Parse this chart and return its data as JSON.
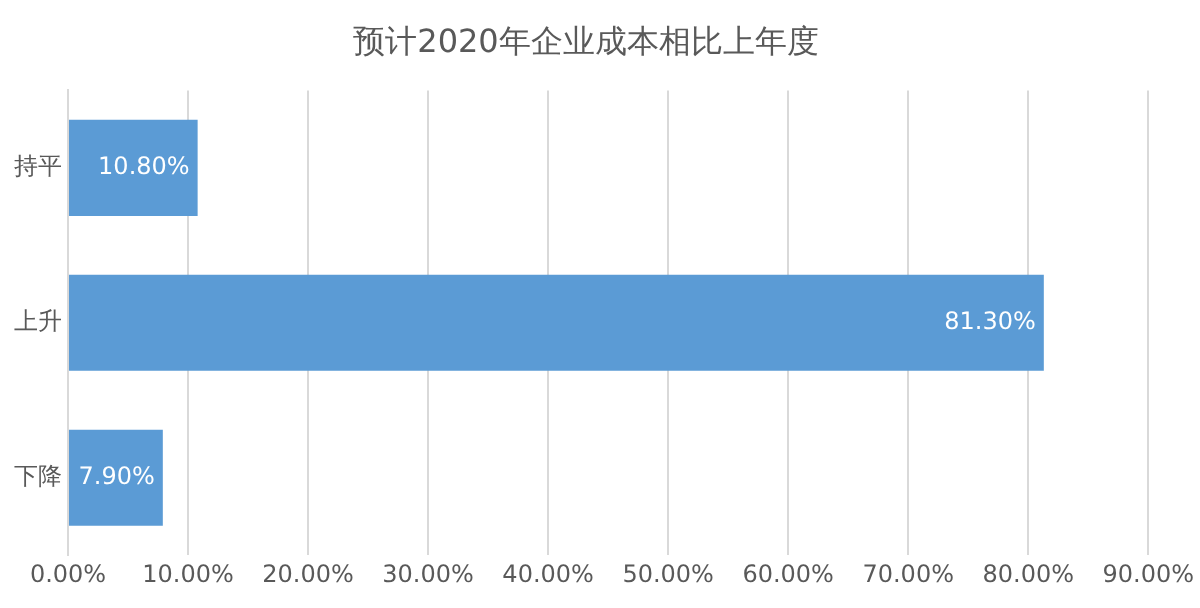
{
  "chart_data": {
    "type": "bar",
    "orientation": "horizontal",
    "title": "预计2020年企业成本相比上年度",
    "categories": [
      "持平",
      "上升",
      "下降"
    ],
    "values": [
      10.8,
      81.3,
      7.9
    ],
    "value_labels": [
      "10.80%",
      "81.30%",
      "7.90%"
    ],
    "color": "#5b9bd5",
    "xlim": [
      0,
      90
    ],
    "xticks": [
      {
        "value": 0,
        "label": "0.00%"
      },
      {
        "value": 10,
        "label": "10.00%"
      },
      {
        "value": 20,
        "label": "20.00%"
      },
      {
        "value": 30,
        "label": "30.00%"
      },
      {
        "value": 40,
        "label": "40.00%"
      },
      {
        "value": 50,
        "label": "50.00%"
      },
      {
        "value": 60,
        "label": "60.00%"
      },
      {
        "value": 70,
        "label": "70.00%"
      },
      {
        "value": 80,
        "label": "80.00%"
      },
      {
        "value": 90,
        "label": "90.00%"
      }
    ],
    "grid": "x"
  }
}
